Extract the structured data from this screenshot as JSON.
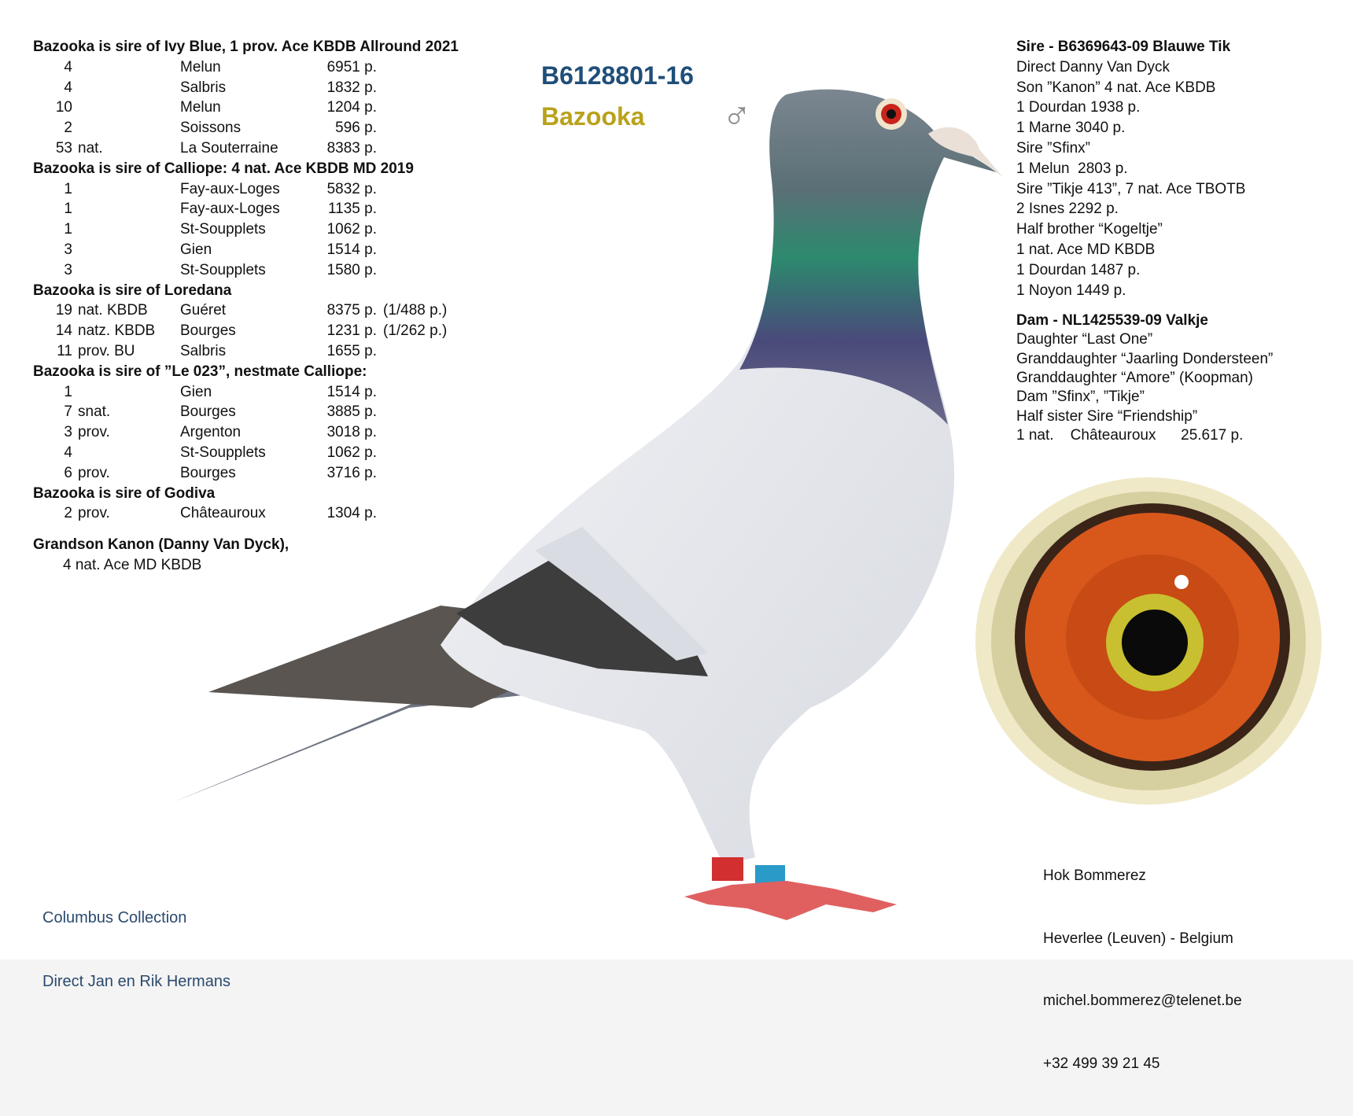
{
  "header": {
    "ring": "B6128801-16",
    "name": "Bazooka",
    "sex_icon": "male-symbol"
  },
  "offspring": [
    {
      "heading": "Bazooka is sire of Ivy Blue, 1 prov. Ace KBDB Allround 2021",
      "results": [
        {
          "place": "4",
          "qual": "",
          "location": "Melun",
          "points": "6951 p.",
          "extra": ""
        },
        {
          "place": "4",
          "qual": "",
          "location": "Salbris",
          "points": "1832 p.",
          "extra": ""
        },
        {
          "place": "10",
          "qual": "",
          "location": "Melun",
          "points": "1204 p.",
          "extra": ""
        },
        {
          "place": "2",
          "qual": "",
          "location": "Soissons",
          "points": "596 p.",
          "extra": ""
        },
        {
          "place": "53",
          "qual": "nat.",
          "location": "La Souterraine",
          "points": "8383 p.",
          "extra": ""
        }
      ]
    },
    {
      "heading": "Bazooka is sire of Calliope: 4 nat. Ace KBDB MD 2019",
      "results": [
        {
          "place": "1",
          "qual": "",
          "location": "Fay-aux-Loges",
          "points": "5832 p.",
          "extra": ""
        },
        {
          "place": "1",
          "qual": "",
          "location": "Fay-aux-Loges",
          "points": "1135 p.",
          "extra": ""
        },
        {
          "place": "1",
          "qual": "",
          "location": "St-Soupplets",
          "points": "1062 p.",
          "extra": ""
        },
        {
          "place": "3",
          "qual": "",
          "location": "Gien",
          "points": "1514 p.",
          "extra": ""
        },
        {
          "place": "3",
          "qual": "",
          "location": "St-Soupplets",
          "points": "1580 p.",
          "extra": ""
        }
      ]
    },
    {
      "heading": "Bazooka is sire of Loredana",
      "results": [
        {
          "place": "19",
          "qual": "nat. KBDB",
          "location": "Guéret",
          "points": "8375 p.",
          "extra": "(1/488 p.)"
        },
        {
          "place": "14",
          "qual": "natz. KBDB",
          "location": "Bourges",
          "points": "1231 p.",
          "extra": "(1/262 p.)"
        },
        {
          "place": "11",
          "qual": "prov. BU",
          "location": "Salbris",
          "points": "1655 p.",
          "extra": ""
        }
      ]
    },
    {
      "heading": "Bazooka is sire of ”Le 023”, nestmate Calliope:",
      "results": [
        {
          "place": "1",
          "qual": "",
          "location": "Gien",
          "points": "1514 p.",
          "extra": ""
        },
        {
          "place": "7",
          "qual": "snat.",
          "location": "Bourges",
          "points": "3885 p.",
          "extra": ""
        },
        {
          "place": "3",
          "qual": "prov.",
          "location": "Argenton",
          "points": "3018 p.",
          "extra": ""
        },
        {
          "place": "4",
          "qual": "",
          "location": "St-Soupplets",
          "points": "1062 p.",
          "extra": ""
        },
        {
          "place": "6",
          "qual": "prov.",
          "location": "Bourges",
          "points": "3716 p.",
          "extra": ""
        }
      ]
    },
    {
      "heading": "Bazooka is sire of Godiva",
      "results": [
        {
          "place": "2",
          "qual": "prov.",
          "location": "Châteauroux",
          "points": "1304 p.",
          "extra": ""
        }
      ]
    }
  ],
  "grandson": {
    "heading": "Grandson Kanon (Danny Van Dyck),",
    "line": "4 nat. Ace MD KBDB"
  },
  "sire": {
    "heading": "Sire - B6369643-09 Blauwe Tik",
    "lines": [
      "Direct Danny Van Dyck",
      "Son ”Kanon” 4 nat. Ace KBDB",
      "1 Dourdan 1938 p.",
      "1 Marne 3040 p.",
      "Sire ”Sfinx”",
      "1 Melun  2803 p.",
      "Sire ”Tikje 413”, 7 nat. Ace TBOTB",
      "2 Isnes 2292 p.",
      "Half brother “Kogeltje”",
      "1 nat. Ace MD KBDB",
      "1 Dourdan 1487 p.",
      "1 Noyon 1449 p."
    ]
  },
  "dam": {
    "heading": "Dam - NL1425539-09 Valkje",
    "lines": [
      "Daughter “Last One”",
      "Granddaughter “Jaarling Dondersteen”",
      "Granddaughter “Amore” (Koopman)",
      "Dam ”Sfinx”, ”Tikje”",
      "Half sister Sire “Friendship”",
      "1 nat.    Châteauroux      25.617 p."
    ]
  },
  "footer_left": {
    "line1": "Columbus Collection",
    "line2": "Direct Jan en Rik Hermans"
  },
  "contact": {
    "loft": "Hok Bommerez",
    "location": "Heverlee (Leuven) - Belgium",
    "email": "michel.bommerez@telenet.be",
    "phone": "+32 499 39 21 45"
  },
  "colors": {
    "title": "#1f4e79",
    "name": "#b9a21c"
  }
}
